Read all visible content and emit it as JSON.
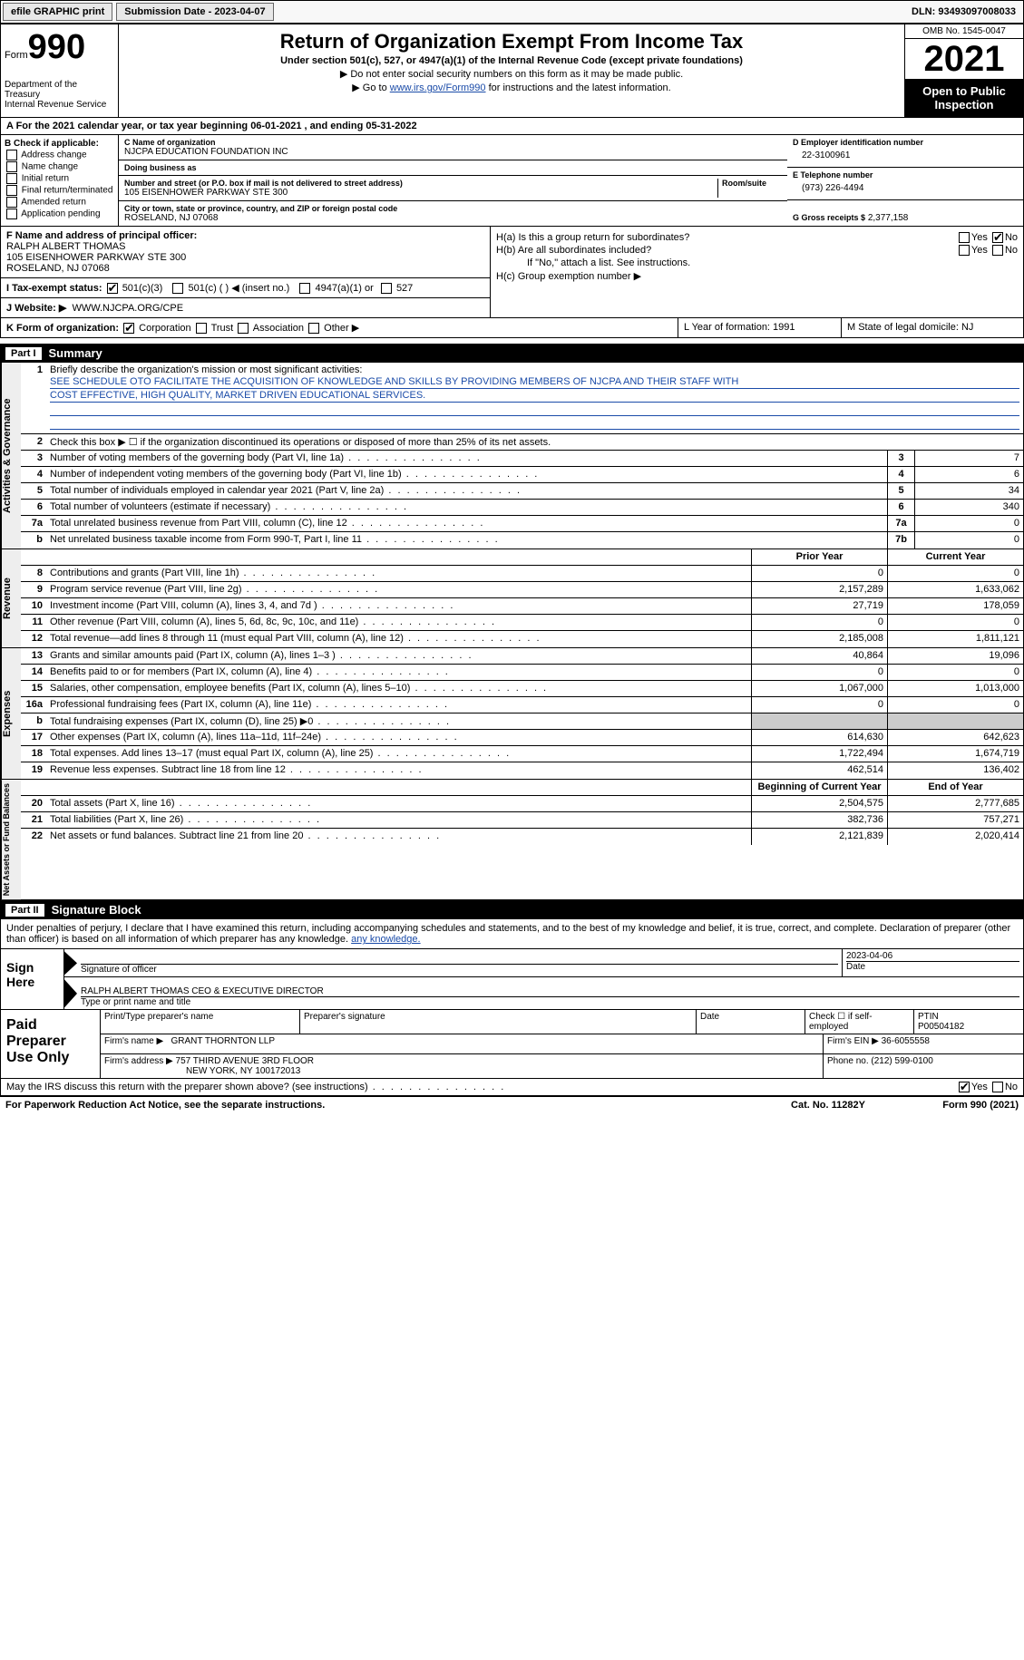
{
  "topbar": {
    "efile": "efile GRAPHIC print",
    "subdate_lbl": "Submission Date - 2023-04-07",
    "dln": "DLN: 93493097008033"
  },
  "header": {
    "form_word": "Form",
    "form_num": "990",
    "dept": "Department of the Treasury",
    "irs": "Internal Revenue Service",
    "title": "Return of Organization Exempt From Income Tax",
    "sub": "Under section 501(c), 527, or 4947(a)(1) of the Internal Revenue Code (except private foundations)",
    "arrow1": "▶ Do not enter social security numbers on this form as it may be made public.",
    "arrow2_pre": "▶ Go to ",
    "arrow2_link": "www.irs.gov/Form990",
    "arrow2_post": " for instructions and the latest information.",
    "omb": "OMB No. 1545-0047",
    "year": "2021",
    "open": "Open to Public Inspection"
  },
  "lineA": "A For the 2021 calendar year, or tax year beginning 06-01-2021    , and ending 05-31-2022",
  "colB": {
    "hdr": "B Check if applicable:",
    "opts": [
      "Address change",
      "Name change",
      "Initial return",
      "Final return/terminated",
      "Amended return",
      "Application pending"
    ]
  },
  "colC": {
    "name_lbl": "C Name of organization",
    "name": "NJCPA EDUCATION FOUNDATION INC",
    "dba_lbl": "Doing business as",
    "dba": "",
    "street_lbl": "Number and street (or P.O. box if mail is not delivered to street address)",
    "room_lbl": "Room/suite",
    "street": "105 EISENHOWER PARKWAY STE 300",
    "city_lbl": "City or town, state or province, country, and ZIP or foreign postal code",
    "city": "ROSELAND, NJ  07068"
  },
  "colD": {
    "ein_lbl": "D Employer identification number",
    "ein": "22-3100961",
    "tel_lbl": "E Telephone number",
    "tel": "(973) 226-4494",
    "gross_lbl": "G Gross receipts $",
    "gross": "2,377,158"
  },
  "rowF": {
    "lbl": "F Name and address of principal officer:",
    "name": "RALPH ALBERT THOMAS",
    "addr1": "105 EISENHOWER PARKWAY STE 300",
    "addr2": "ROSELAND, NJ  07068"
  },
  "rowI": {
    "lbl": "I  Tax-exempt status:",
    "o1": "501(c)(3)",
    "o2": "501(c) (   ) ◀ (insert no.)",
    "o3": "4947(a)(1) or",
    "o4": "527"
  },
  "rowJ": {
    "lbl": "J  Website: ▶",
    "val": "WWW.NJCPA.ORG/CPE"
  },
  "rowH": {
    "a": "H(a)  Is this a group return for subordinates?",
    "b": "H(b)  Are all subordinates included?",
    "bnote": "If \"No,\" attach a list. See instructions.",
    "c": "H(c)  Group exemption number ▶",
    "yes": "Yes",
    "no": "No"
  },
  "rowK": {
    "lbl": "K Form of organization:",
    "o1": "Corporation",
    "o2": "Trust",
    "o3": "Association",
    "o4": "Other ▶"
  },
  "rowL": "L Year of formation: 1991",
  "rowM": "M State of legal domicile: NJ",
  "part1": {
    "num": "Part I",
    "title": "Summary"
  },
  "tabs": {
    "ag": "Activities & Governance",
    "rev": "Revenue",
    "exp": "Expenses",
    "na": "Net Assets or Fund Balances"
  },
  "q1": {
    "num": "1",
    "text": "Briefly describe the organization's mission or most significant activities:",
    "l1": "SEE SCHEDULE OTO FACILITATE THE ACQUISITION OF KNOWLEDGE AND SKILLS BY PROVIDING MEMBERS OF NJCPA AND THEIR STAFF WITH",
    "l2": "COST EFFECTIVE, HIGH QUALITY, MARKET DRIVEN EDUCATIONAL SERVICES."
  },
  "q2": {
    "num": "2",
    "text": "Check this box ▶ ☐ if the organization discontinued its operations or disposed of more than 25% of its net assets."
  },
  "lines": [
    {
      "n": "3",
      "t": "Number of voting members of the governing body (Part VI, line 1a)",
      "box": "3",
      "v": "7"
    },
    {
      "n": "4",
      "t": "Number of independent voting members of the governing body (Part VI, line 1b)",
      "box": "4",
      "v": "6"
    },
    {
      "n": "5",
      "t": "Total number of individuals employed in calendar year 2021 (Part V, line 2a)",
      "box": "5",
      "v": "34"
    },
    {
      "n": "6",
      "t": "Total number of volunteers (estimate if necessary)",
      "box": "6",
      "v": "340"
    },
    {
      "n": "7a",
      "t": "Total unrelated business revenue from Part VIII, column (C), line 12",
      "box": "7a",
      "v": "0"
    },
    {
      "n": "b",
      "t": "Net unrelated business taxable income from Form 990-T, Part I, line 11",
      "box": "7b",
      "v": "0"
    }
  ],
  "twocol_hdr": {
    "prior": "Prior Year",
    "current": "Current Year"
  },
  "rev": [
    {
      "n": "8",
      "t": "Contributions and grants (Part VIII, line 1h)",
      "p": "0",
      "c": "0"
    },
    {
      "n": "9",
      "t": "Program service revenue (Part VIII, line 2g)",
      "p": "2,157,289",
      "c": "1,633,062"
    },
    {
      "n": "10",
      "t": "Investment income (Part VIII, column (A), lines 3, 4, and 7d )",
      "p": "27,719",
      "c": "178,059"
    },
    {
      "n": "11",
      "t": "Other revenue (Part VIII, column (A), lines 5, 6d, 8c, 9c, 10c, and 11e)",
      "p": "0",
      "c": "0"
    },
    {
      "n": "12",
      "t": "Total revenue—add lines 8 through 11 (must equal Part VIII, column (A), line 12)",
      "p": "2,185,008",
      "c": "1,811,121"
    }
  ],
  "exp": [
    {
      "n": "13",
      "t": "Grants and similar amounts paid (Part IX, column (A), lines 1–3 )",
      "p": "40,864",
      "c": "19,096"
    },
    {
      "n": "14",
      "t": "Benefits paid to or for members (Part IX, column (A), line 4)",
      "p": "0",
      "c": "0"
    },
    {
      "n": "15",
      "t": "Salaries, other compensation, employee benefits (Part IX, column (A), lines 5–10)",
      "p": "1,067,000",
      "c": "1,013,000"
    },
    {
      "n": "16a",
      "t": "Professional fundraising fees (Part IX, column (A), line 11e)",
      "p": "0",
      "c": "0"
    },
    {
      "n": "b",
      "t": "Total fundraising expenses (Part IX, column (D), line 25) ▶0",
      "p": "",
      "c": "",
      "shade": true
    },
    {
      "n": "17",
      "t": "Other expenses (Part IX, column (A), lines 11a–11d, 11f–24e)",
      "p": "614,630",
      "c": "642,623"
    },
    {
      "n": "18",
      "t": "Total expenses. Add lines 13–17 (must equal Part IX, column (A), line 25)",
      "p": "1,722,494",
      "c": "1,674,719"
    },
    {
      "n": "19",
      "t": "Revenue less expenses. Subtract line 18 from line 12",
      "p": "462,514",
      "c": "136,402"
    }
  ],
  "na_hdr": {
    "begin": "Beginning of Current Year",
    "end": "End of Year"
  },
  "na": [
    {
      "n": "20",
      "t": "Total assets (Part X, line 16)",
      "p": "2,504,575",
      "c": "2,777,685"
    },
    {
      "n": "21",
      "t": "Total liabilities (Part X, line 26)",
      "p": "382,736",
      "c": "757,271"
    },
    {
      "n": "22",
      "t": "Net assets or fund balances. Subtract line 21 from line 20",
      "p": "2,121,839",
      "c": "2,020,414"
    }
  ],
  "part2": {
    "num": "Part II",
    "title": "Signature Block"
  },
  "sig_intro": "Under penalties of perjury, I declare that I have examined this return, including accompanying schedules and statements, and to the best of my knowledge and belief, it is true, correct, and complete. Declaration of preparer (other than officer) is based on all information of which preparer has any knowledge.",
  "sign_here": "Sign Here",
  "sig": {
    "officer_lbl": "Signature of officer",
    "date_lbl": "Date",
    "date": "2023-04-06",
    "name": "RALPH ALBERT THOMAS CEO & EXECUTIVE DIRECTOR",
    "name_lbl": "Type or print name and title"
  },
  "paid_lbl": "Paid Preparer Use Only",
  "paid": {
    "h1": "Print/Type preparer's name",
    "h2": "Preparer's signature",
    "h3": "Date",
    "h4_pre": "Check ☐ if self-employed",
    "h5": "PTIN",
    "ptin": "P00504182",
    "firm_lbl": "Firm's name    ▶",
    "firm": "GRANT THORNTON LLP",
    "ein_lbl": "Firm's EIN ▶",
    "ein": "36-6055558",
    "addr_lbl": "Firm's address ▶",
    "addr1": "757 THIRD AVENUE 3RD FLOOR",
    "addr2": "NEW YORK, NY  100172013",
    "phone_lbl": "Phone no.",
    "phone": "(212) 599-0100"
  },
  "irs_q": "May the IRS discuss this return with the preparer shown above? (see instructions)",
  "footer": {
    "left": "For Paperwork Reduction Act Notice, see the separate instructions.",
    "mid": "Cat. No. 11282Y",
    "right": "Form 990 (2021)"
  }
}
